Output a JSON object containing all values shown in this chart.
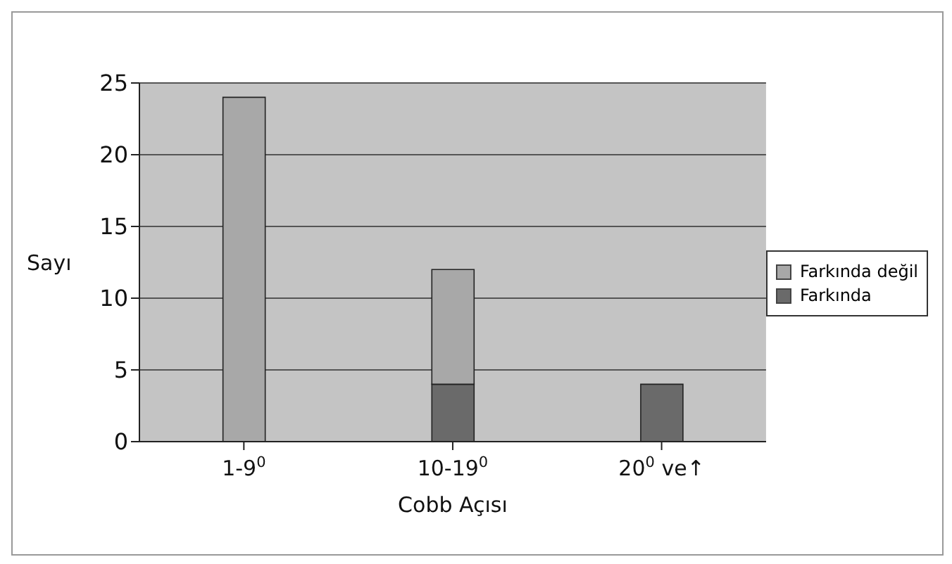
{
  "chart_data": {
    "type": "bar",
    "stacked": true,
    "xlabel": "Cobb Açısı",
    "ylabel": "Sayı",
    "categories": [
      "1-9$^{0}$",
      "10-19$^{0}$",
      "20$^{0}$ ve↑"
    ],
    "series": [
      {
        "name": "Farkında",
        "color": "#6a6a6a",
        "values": [
          0,
          4,
          4
        ]
      },
      {
        "name": "Farkında değil",
        "color": "#a8a8a8",
        "values": [
          24,
          8,
          0
        ]
      }
    ],
    "ylim": [
      0,
      25
    ],
    "yticks": [
      0,
      5,
      10,
      15,
      20,
      25
    ],
    "grid": "y",
    "legend": "right"
  }
}
